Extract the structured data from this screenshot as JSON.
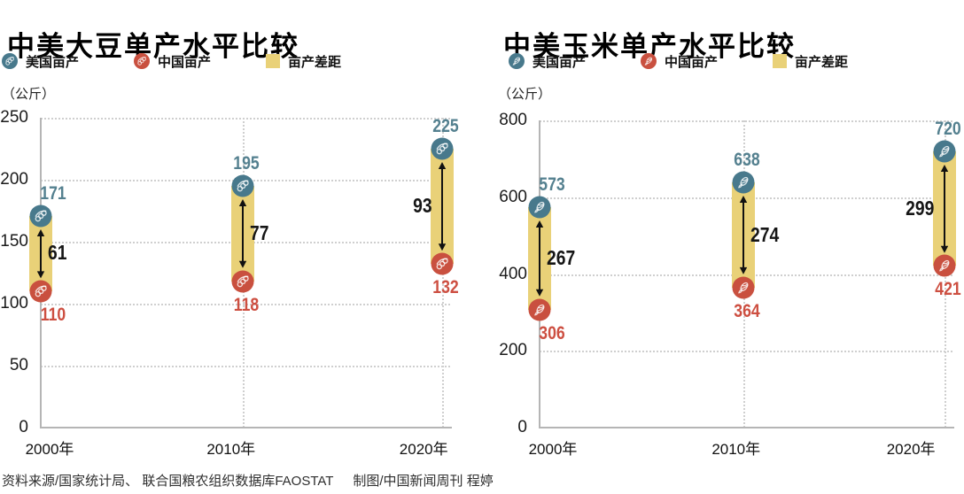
{
  "footer": {
    "source": "资料来源/国家统计局、 联合国粮农组织数据库FAOSTAT",
    "credit": "制图/中国新闻周刊 程婷"
  },
  "colors": {
    "us": "#48798c",
    "cn": "#c9503f",
    "gap_fill": "#e9d178",
    "us_text": "#54808f",
    "cn_text": "#cd4f41",
    "gap_text": "#161616",
    "grid": "#cfcfcf",
    "axis": "#b5b5b5"
  },
  "chart_data": [
    {
      "type": "bar",
      "subtype": "dumbbell-gap",
      "title": "中美大豆单产水平比较",
      "unit_label": "（公斤）",
      "icon": "soybean-icon",
      "legend": [
        "美国亩产",
        "中国亩产",
        "亩产差距"
      ],
      "legend_position": "top",
      "categories": [
        "2000年",
        "2010年",
        "2020年"
      ],
      "series": [
        {
          "name": "美国亩产",
          "values": [
            171,
            195,
            225
          ]
        },
        {
          "name": "中国亩产",
          "values": [
            110,
            118,
            132
          ]
        },
        {
          "name": "亩产差距",
          "values": [
            61,
            77,
            93
          ]
        }
      ],
      "ylim": [
        0,
        250
      ],
      "yticks": [
        0,
        50,
        100,
        150,
        200,
        250
      ],
      "grid": true
    },
    {
      "type": "bar",
      "subtype": "dumbbell-gap",
      "title": "中美玉米单产水平比较",
      "unit_label": "（公斤）",
      "icon": "corn-icon",
      "legend": [
        "美国亩产",
        "中国亩产",
        "亩产差距"
      ],
      "legend_position": "top",
      "categories": [
        "2000年",
        "2010年",
        "2020年"
      ],
      "series": [
        {
          "name": "美国亩产",
          "values": [
            573,
            638,
            720
          ]
        },
        {
          "name": "中国亩产",
          "values": [
            306,
            364,
            421
          ]
        },
        {
          "name": "亩产差距",
          "values": [
            267,
            274,
            299
          ]
        }
      ],
      "ylim": [
        0,
        800
      ],
      "yticks": [
        0,
        200,
        400,
        600,
        800
      ],
      "grid": true
    }
  ]
}
